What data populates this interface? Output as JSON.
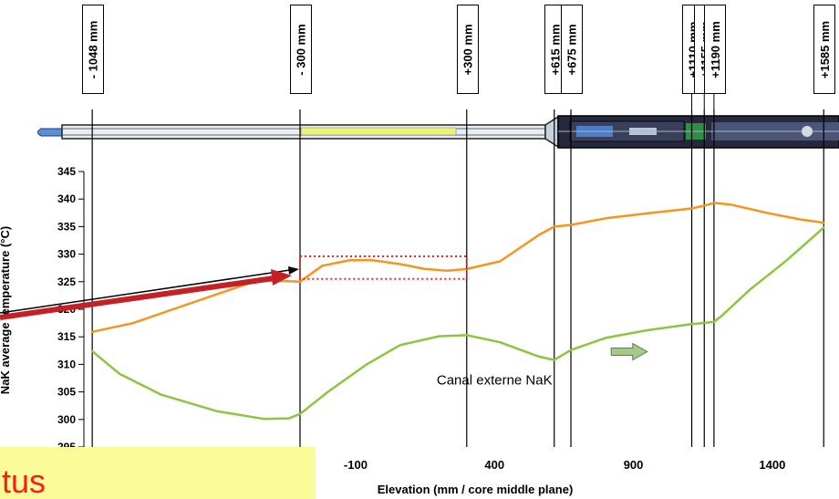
{
  "chart_data": {
    "type": "line",
    "ylabel": "NaK average temperature (°C)",
    "xlabel": "Elevation (mm / core middle plane)",
    "yticks": [
      295,
      300,
      305,
      310,
      315,
      320,
      325,
      330,
      335,
      340,
      345
    ],
    "xticks": [
      -100,
      400,
      900,
      1400
    ],
    "ylim": [
      295,
      345
    ],
    "xlim": [
      -1380,
      1640
    ],
    "elevation_markers": [
      {
        "label": "- 1048 mm",
        "x": -1048
      },
      {
        "label": "- 300 mm",
        "x": -300
      },
      {
        "label": "+300 mm",
        "x": 300
      },
      {
        "label": "+615 mm",
        "x": 615
      },
      {
        "label": "+675 mm",
        "x": 675
      },
      {
        "label": "+1110 mm",
        "x": 1110
      },
      {
        "label": "+1155 mm",
        "x": 1155
      },
      {
        "label": "+1190 mm",
        "x": 1190
      },
      {
        "label": "+1585 mm",
        "x": 1585
      }
    ],
    "series": [
      {
        "color": "#f7941d",
        "points": [
          [
            -1048,
            315.9
          ],
          [
            -900,
            317.5
          ],
          [
            -700,
            321
          ],
          [
            -450,
            325.3
          ],
          [
            -300,
            325
          ],
          [
            -220,
            327.9
          ],
          [
            -120,
            328.9
          ],
          [
            -40,
            328.9
          ],
          [
            60,
            328.2
          ],
          [
            150,
            327.3
          ],
          [
            230,
            327
          ],
          [
            300,
            327.3
          ],
          [
            420,
            328.7
          ],
          [
            560,
            333.5
          ],
          [
            615,
            335
          ],
          [
            675,
            335.3
          ],
          [
            800,
            336.5
          ],
          [
            950,
            337.4
          ],
          [
            1110,
            338.3
          ],
          [
            1155,
            338.8
          ],
          [
            1190,
            339.3
          ],
          [
            1250,
            339
          ],
          [
            1380,
            337.5
          ],
          [
            1500,
            336.3
          ],
          [
            1585,
            335.7
          ]
        ]
      },
      {
        "color": "#8cc63f",
        "points": [
          [
            -1048,
            312.4
          ],
          [
            -950,
            308.3
          ],
          [
            -800,
            304.5
          ],
          [
            -600,
            301.5
          ],
          [
            -430,
            300.1
          ],
          [
            -340,
            300.2
          ],
          [
            -300,
            301
          ],
          [
            -200,
            305
          ],
          [
            -60,
            310
          ],
          [
            60,
            313.5
          ],
          [
            200,
            315.1
          ],
          [
            300,
            315.3
          ],
          [
            420,
            314
          ],
          [
            560,
            311.4
          ],
          [
            615,
            310.8
          ],
          [
            675,
            312.6
          ],
          [
            800,
            314.8
          ],
          [
            950,
            316.2
          ],
          [
            1110,
            317.3
          ],
          [
            1190,
            317.7
          ],
          [
            1220,
            318.9
          ],
          [
            1320,
            323.6
          ],
          [
            1450,
            328.8
          ],
          [
            1585,
            334.8
          ]
        ]
      }
    ],
    "annotations": [
      {
        "text": "Canal externe NaK",
        "x": 400,
        "y": 306.3
      },
      {
        "type": "arrow",
        "color": "#a6c88b",
        "x": [
          820,
          950
        ],
        "y": 312.3
      },
      {
        "type": "dotted-box",
        "color": "#ff2020",
        "x": [
          -300,
          300
        ],
        "y": [
          325.5,
          329.6
        ]
      }
    ],
    "grid": false
  },
  "note": {
    "text": "tus"
  }
}
